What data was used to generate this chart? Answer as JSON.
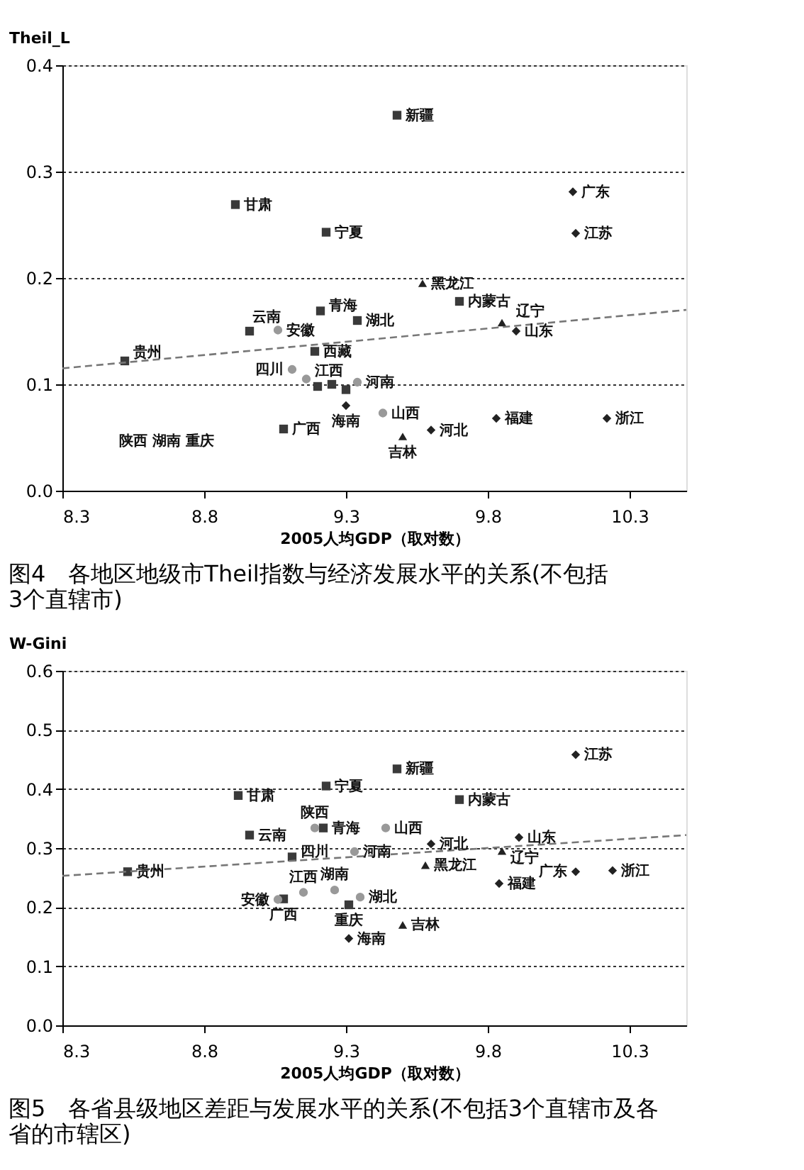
{
  "chart_data": [
    {
      "type": "scatter",
      "title": "图4　各地区地级市Theil指数与经济发展水平的关系(不包括3个直辖市)",
      "xlabel": "2005人均GDP（取对数）",
      "ylabel": "Theil_L",
      "xlim": [
        8.3,
        10.5
      ],
      "xticks": [
        8.3,
        8.8,
        9.3,
        9.8,
        10.3
      ],
      "ylim": [
        0,
        0.4
      ],
      "yticks": [
        {
          "value": 0,
          "label": "0.0"
        },
        0.1,
        0.2,
        0.3,
        0.4
      ],
      "grid": "y",
      "series": [
        {
          "marker": "square",
          "color": "#3a3a3a",
          "x": [
            9.48,
            8.91,
            9.23,
            9.7,
            9.21,
            9.34,
            8.96,
            8.52,
            9.19,
            9.2,
            9.25,
            9.3,
            9.08
          ],
          "values": [
            0.353,
            0.269,
            0.243,
            0.178,
            0.169,
            0.16,
            0.15,
            0.122,
            0.131,
            0.098,
            0.1,
            0.095,
            0.058
          ]
        },
        {
          "marker": "diamond",
          "color": "#222222",
          "x": [
            10.1,
            10.11,
            9.9,
            9.3,
            9.6,
            9.83,
            10.22
          ],
          "values": [
            0.281,
            0.242,
            0.15,
            0.08,
            0.057,
            0.068,
            0.068
          ]
        },
        {
          "marker": "triangle",
          "color": "#222222",
          "x": [
            9.57,
            9.85,
            9.5
          ],
          "values": [
            0.195,
            0.158,
            0.051
          ]
        },
        {
          "marker": "circle",
          "color": "#999999",
          "x": [
            9.06,
            9.11,
            9.16,
            9.34,
            9.43
          ],
          "values": [
            0.151,
            0.114,
            0.105,
            0.102,
            0.073
          ]
        },
        {
          "type": "line",
          "marker": "none",
          "line_style": "dashed",
          "color": "#777777",
          "x": [
            8.3,
            10.5
          ],
          "values": [
            0.115,
            0.17
          ]
        }
      ],
      "annotations": [
        {
          "text": "新疆",
          "x": 9.48,
          "y": 0.353
        },
        {
          "text": "甘肃",
          "x": 8.91,
          "y": 0.269
        },
        {
          "text": "宁夏",
          "x": 9.23,
          "y": 0.243
        },
        {
          "text": "内蒙古",
          "x": 9.7,
          "y": 0.178
        },
        {
          "text": "青海",
          "x": 9.21,
          "y": 0.169
        },
        {
          "text": "湖北",
          "x": 9.34,
          "y": 0.16
        },
        {
          "text": "云南",
          "x": 8.96,
          "y": 0.15
        },
        {
          "text": "贵州",
          "x": 8.52,
          "y": 0.122
        },
        {
          "text": "西藏",
          "x": 9.19,
          "y": 0.131
        },
        {
          "text": "广西",
          "x": 9.08,
          "y": 0.058
        },
        {
          "text": "广东",
          "x": 10.1,
          "y": 0.281
        },
        {
          "text": "江苏",
          "x": 10.11,
          "y": 0.242
        },
        {
          "text": "山东",
          "x": 9.9,
          "y": 0.15
        },
        {
          "text": "海南",
          "x": 9.3,
          "y": 0.08
        },
        {
          "text": "河北",
          "x": 9.6,
          "y": 0.057
        },
        {
          "text": "福建",
          "x": 9.83,
          "y": 0.068
        },
        {
          "text": "浙江",
          "x": 10.22,
          "y": 0.068
        },
        {
          "text": "黑龙江",
          "x": 9.57,
          "y": 0.195
        },
        {
          "text": "辽宁",
          "x": 9.85,
          "y": 0.158
        },
        {
          "text": "吉林",
          "x": 9.5,
          "y": 0.051
        },
        {
          "text": "安徽",
          "x": 9.06,
          "y": 0.151
        },
        {
          "text": "四川",
          "x": 9.11,
          "y": 0.114
        },
        {
          "text": "江西",
          "x": 9.16,
          "y": 0.105
        },
        {
          "text": "河南",
          "x": 9.34,
          "y": 0.102
        },
        {
          "text": "山西",
          "x": 9.43,
          "y": 0.073
        },
        "陕西 湖南 重庆"
      ]
    },
    {
      "type": "scatter",
      "title": "图5　各省县级地区差距与发展水平的关系(不包括3个直辖市及各省的市辖区)",
      "xlabel": "2005人均GDP（取对数）",
      "ylabel": "W-Gini",
      "xlim": [
        8.3,
        10.5
      ],
      "xticks": [
        8.3,
        8.8,
        9.3,
        9.8,
        10.3
      ],
      "ylim": [
        0,
        0.6
      ],
      "yticks": [
        {
          "value": 0,
          "label": "0.0"
        },
        0.1,
        0.2,
        0.3,
        0.4,
        0.5,
        0.6
      ],
      "grid": "y",
      "series": [
        {
          "marker": "square",
          "color": "#3a3a3a",
          "x": [
            9.48,
            9.23,
            9.7,
            8.92,
            9.22,
            8.96,
            9.11,
            8.53,
            9.08,
            9.31
          ],
          "values": [
            0.434,
            0.405,
            0.382,
            0.389,
            0.334,
            0.322,
            0.285,
            0.26,
            0.214,
            0.204
          ]
        },
        {
          "marker": "diamond",
          "color": "#222222",
          "x": [
            10.11,
            9.91,
            9.6,
            10.11,
            10.24,
            9.84,
            9.31
          ],
          "values": [
            0.458,
            0.318,
            0.307,
            0.26,
            0.262,
            0.24,
            0.147
          ]
        },
        {
          "marker": "triangle",
          "color": "#222222",
          "x": [
            9.85,
            9.58,
            9.5
          ],
          "values": [
            0.295,
            0.271,
            0.17
          ]
        },
        {
          "marker": "circle",
          "color": "#999999",
          "x": [
            9.19,
            9.44,
            9.33,
            9.15,
            9.26,
            9.35,
            9.06
          ],
          "values": [
            0.334,
            0.334,
            0.294,
            0.225,
            0.229,
            0.217,
            0.213
          ]
        },
        {
          "type": "line",
          "marker": "none",
          "line_style": "dashed",
          "color": "#777777",
          "x": [
            8.3,
            10.5
          ],
          "values": [
            0.253,
            0.322
          ]
        }
      ],
      "annotations": [
        {
          "text": "新疆",
          "x": 9.48,
          "y": 0.434
        },
        {
          "text": "宁夏",
          "x": 9.23,
          "y": 0.405
        },
        {
          "text": "内蒙古",
          "x": 9.7,
          "y": 0.382
        },
        {
          "text": "甘肃",
          "x": 8.92,
          "y": 0.389
        },
        {
          "text": "青海",
          "x": 9.22,
          "y": 0.334
        },
        {
          "text": "云南",
          "x": 8.96,
          "y": 0.322
        },
        {
          "text": "四川",
          "x": 9.11,
          "y": 0.285
        },
        {
          "text": "贵州",
          "x": 8.53,
          "y": 0.26
        },
        {
          "text": "广西",
          "x": 9.08,
          "y": 0.214
        },
        {
          "text": "重庆",
          "x": 9.31,
          "y": 0.204
        },
        {
          "text": "江苏",
          "x": 10.11,
          "y": 0.458
        },
        {
          "text": "山东",
          "x": 9.91,
          "y": 0.318
        },
        {
          "text": "河北",
          "x": 9.6,
          "y": 0.307
        },
        {
          "text": "广东",
          "x": 10.11,
          "y": 0.26
        },
        {
          "text": "浙江",
          "x": 10.24,
          "y": 0.262
        },
        {
          "text": "福建",
          "x": 9.84,
          "y": 0.24
        },
        {
          "text": "海南",
          "x": 9.31,
          "y": 0.147
        },
        {
          "text": "辽宁",
          "x": 9.85,
          "y": 0.295
        },
        {
          "text": "黑龙江",
          "x": 9.58,
          "y": 0.271
        },
        {
          "text": "吉林",
          "x": 9.5,
          "y": 0.17
        },
        {
          "text": "陕西",
          "x": 9.19,
          "y": 0.334
        },
        {
          "text": "山西",
          "x": 9.44,
          "y": 0.334
        },
        {
          "text": "河南",
          "x": 9.33,
          "y": 0.294
        },
        {
          "text": "江西",
          "x": 9.15,
          "y": 0.225
        },
        {
          "text": "湖南",
          "x": 9.26,
          "y": 0.229
        },
        {
          "text": "湖北",
          "x": 9.35,
          "y": 0.217
        },
        {
          "text": "安徽",
          "x": 9.06,
          "y": 0.213
        }
      ]
    }
  ]
}
